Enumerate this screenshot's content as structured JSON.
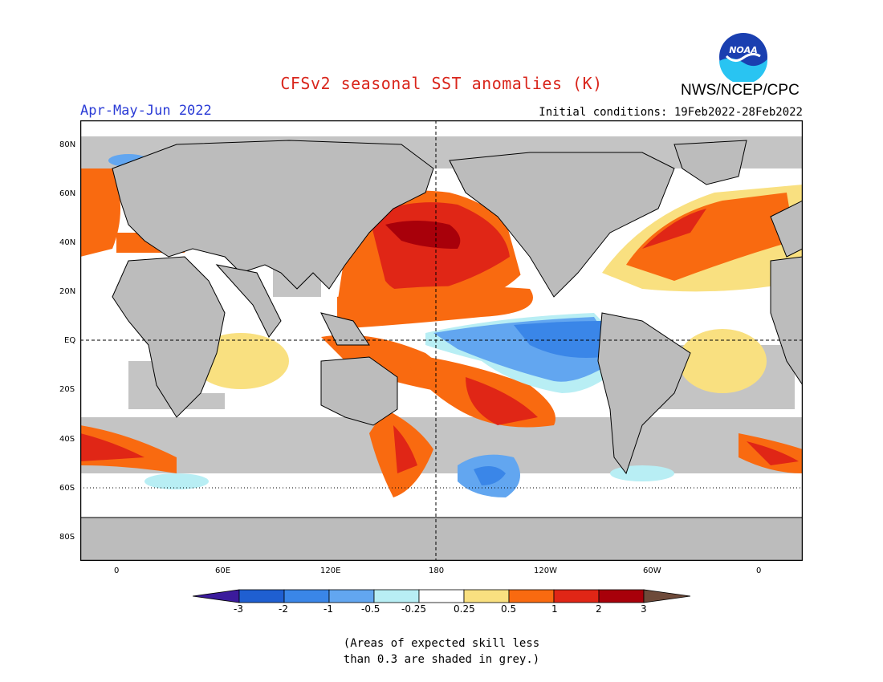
{
  "title": "CFSv2 seasonal SST anomalies (K)",
  "agency": "NWS/NCEP/CPC",
  "logo_text": "NOAA",
  "period": "Apr-May-Jun 2022",
  "initial_conditions": "Initial conditions: 19Feb2022-28Feb2022",
  "lat_labels": [
    "80N",
    "60N",
    "40N",
    "20N",
    "EQ",
    "20S",
    "40S",
    "60S",
    "80S"
  ],
  "lon_labels": [
    "0",
    "60E",
    "120E",
    "180",
    "120W",
    "60W",
    "0"
  ],
  "colorbar": {
    "labels": [
      "-3",
      "-2",
      "-1",
      "-0.5",
      "-0.25",
      "0.25",
      "0.5",
      "1",
      "2",
      "3"
    ],
    "colors": [
      "#3b1b9c",
      "#1f5fd1",
      "#3a86e8",
      "#62a6f0",
      "#b8eef4",
      "#ffffff",
      "#f9e080",
      "#f96a10",
      "#e02616",
      "#a8000a",
      "#6e4a3a"
    ]
  },
  "note_line1": "(Areas of expected skill less",
  "note_line2": "than 0.3 are shaded in grey.)",
  "colors": {
    "land": "#bcbcbc",
    "grey_skill": "#c4c4c4",
    "ocean_neutral": "#ffffff"
  }
}
